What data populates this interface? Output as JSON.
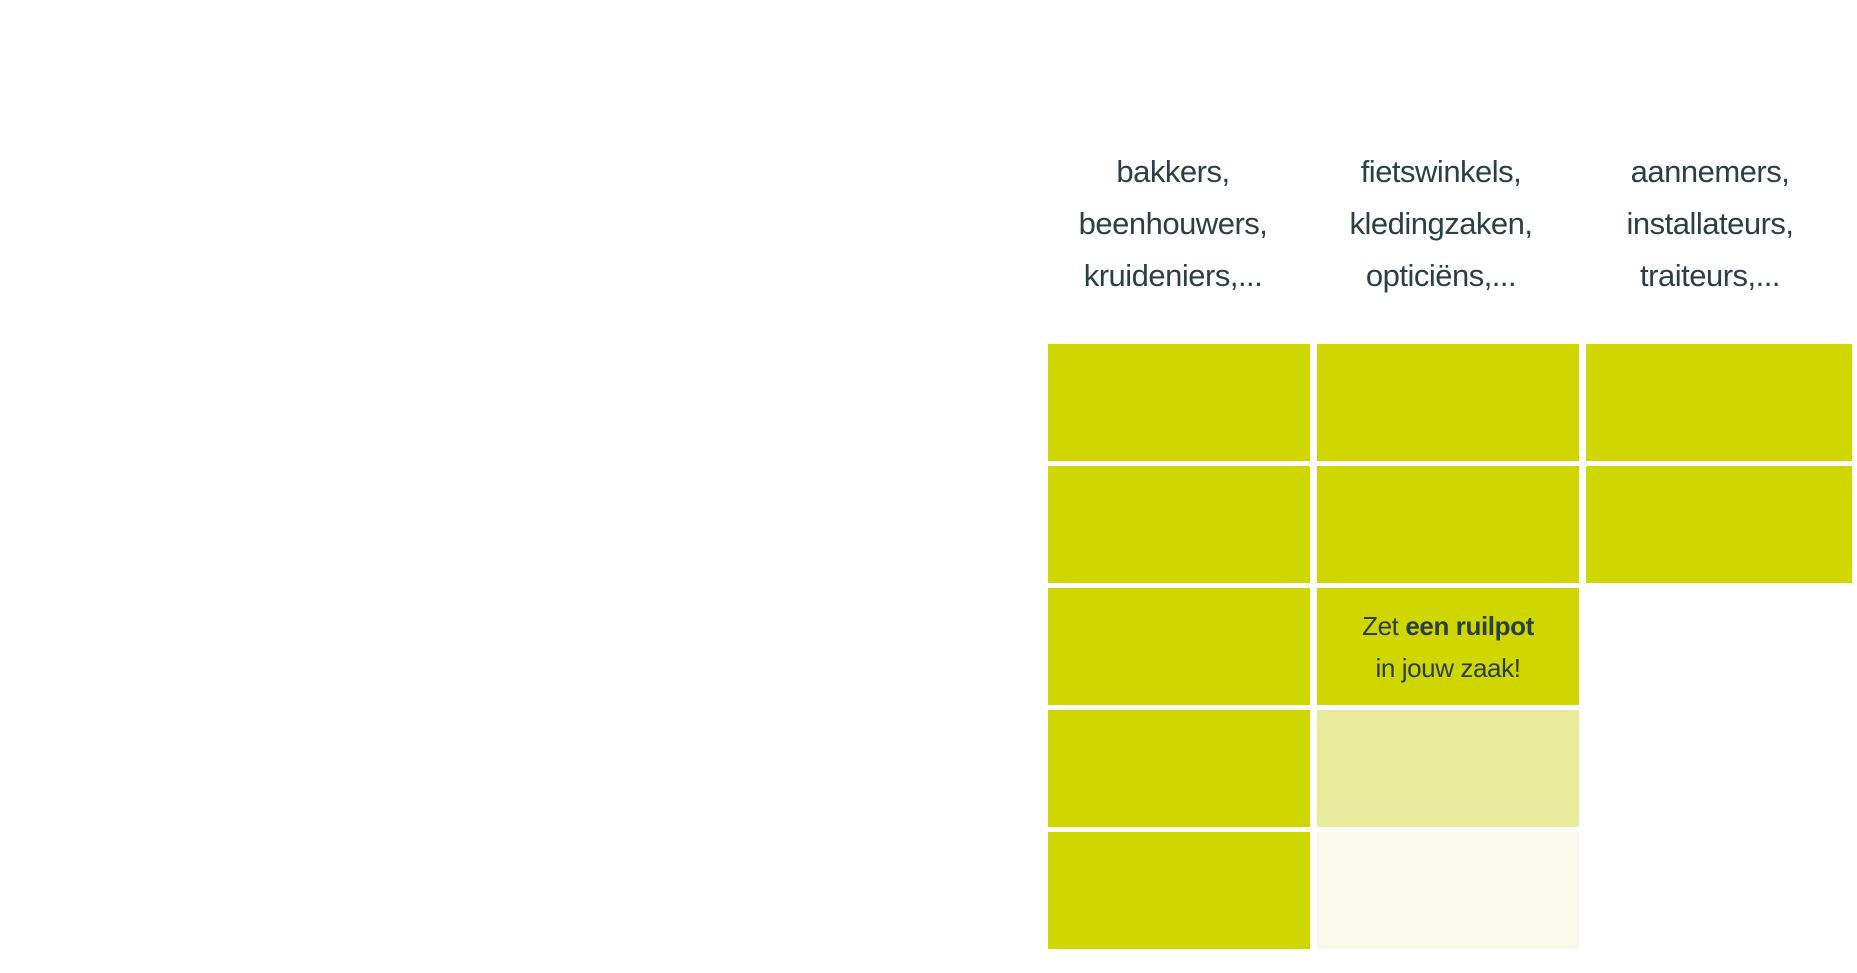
{
  "columns": [
    {
      "lines": [
        "bakkers,",
        "beenhouwers,",
        "kruideniers,..."
      ]
    },
    {
      "lines": [
        "fietswinkels,",
        "kledingzaken,",
        "opticiëns,..."
      ]
    },
    {
      "lines": [
        "aannemers,",
        "installateurs,",
        "traiteurs,..."
      ]
    }
  ],
  "promo": {
    "prefix": "Zet ",
    "bold": "een ruilpot",
    "line2": "in jouw zaak!"
  },
  "colors": {
    "block": "#cfd600",
    "block_light": "#e8ea9c",
    "block_faint": "#f9faeb",
    "text": "#2b4046"
  }
}
